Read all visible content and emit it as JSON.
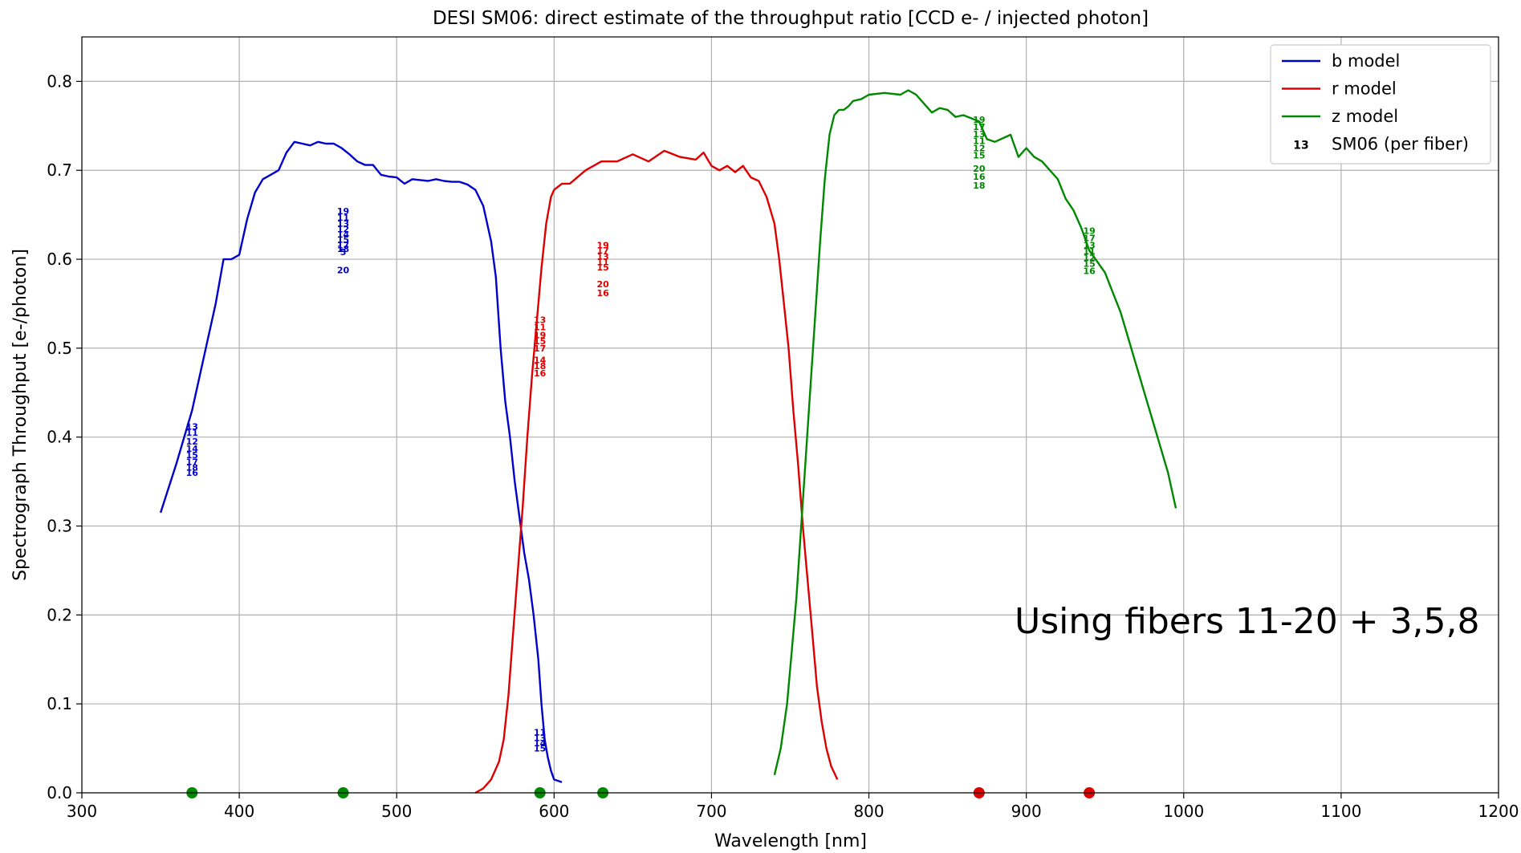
{
  "chart_data": {
    "type": "line",
    "title": "DESI SM06: direct estimate of the throughput ratio [CCD e- / injected photon]",
    "xlabel": "Wavelength [nm]",
    "ylabel": "Spectrograph Throughput [e-/photon]",
    "xlim": [
      300,
      1200
    ],
    "ylim": [
      0.0,
      0.85
    ],
    "xticks": [
      300,
      400,
      500,
      600,
      700,
      800,
      900,
      1000,
      1100,
      1200
    ],
    "xtick_labels": [
      "300",
      "400",
      "500",
      "600",
      "700",
      "800",
      "900",
      "1000",
      "1100",
      "1200"
    ],
    "yticks": [
      0.0,
      0.1,
      0.2,
      0.3,
      0.4,
      0.5,
      0.6,
      0.7,
      0.8
    ],
    "ytick_labels": [
      "0.0",
      "0.1",
      "0.2",
      "0.3",
      "0.4",
      "0.5",
      "0.6",
      "0.7",
      "0.8"
    ],
    "grid": true,
    "legend_position": "top-right",
    "annotation": "Using fibers 11-20 + 3,5,8",
    "series": [
      {
        "name": "b model",
        "color": "#0000cc",
        "x": [
          350,
          360,
          370,
          380,
          385,
          390,
          395,
          400,
          405,
          410,
          415,
          420,
          425,
          430,
          435,
          440,
          445,
          450,
          455,
          460,
          465,
          470,
          475,
          480,
          485,
          490,
          495,
          500,
          505,
          510,
          515,
          520,
          525,
          530,
          535,
          540,
          545,
          550,
          555,
          560,
          563,
          566,
          569,
          572,
          575,
          578,
          581,
          584,
          587,
          590,
          592,
          594,
          596,
          598,
          600,
          605
        ],
        "y": [
          0.315,
          0.37,
          0.43,
          0.51,
          0.55,
          0.6,
          0.6,
          0.605,
          0.645,
          0.675,
          0.69,
          0.695,
          0.7,
          0.72,
          0.732,
          0.73,
          0.728,
          0.732,
          0.73,
          0.73,
          0.725,
          0.718,
          0.71,
          0.706,
          0.706,
          0.695,
          0.693,
          0.692,
          0.685,
          0.69,
          0.689,
          0.688,
          0.69,
          0.688,
          0.687,
          0.687,
          0.684,
          0.678,
          0.66,
          0.62,
          0.58,
          0.5,
          0.44,
          0.4,
          0.35,
          0.31,
          0.27,
          0.24,
          0.2,
          0.15,
          0.1,
          0.06,
          0.04,
          0.025,
          0.015,
          0.012
        ]
      },
      {
        "name": "r model",
        "color": "#dd0000",
        "x": [
          550,
          555,
          560,
          565,
          568,
          571,
          574,
          577,
          580,
          583,
          586,
          589,
          592,
          595,
          598,
          600,
          605,
          610,
          620,
          630,
          640,
          650,
          660,
          670,
          680,
          690,
          695,
          700,
          705,
          710,
          715,
          720,
          725,
          730,
          735,
          740,
          743,
          746,
          749,
          752,
          755,
          758,
          761,
          764,
          767,
          770,
          773,
          776,
          780
        ],
        "y": [
          0.0,
          0.005,
          0.015,
          0.035,
          0.06,
          0.11,
          0.18,
          0.25,
          0.32,
          0.4,
          0.47,
          0.53,
          0.59,
          0.64,
          0.67,
          0.678,
          0.685,
          0.685,
          0.7,
          0.71,
          0.71,
          0.718,
          0.71,
          0.722,
          0.715,
          0.712,
          0.72,
          0.705,
          0.7,
          0.705,
          0.698,
          0.705,
          0.692,
          0.688,
          0.67,
          0.64,
          0.6,
          0.55,
          0.5,
          0.43,
          0.37,
          0.3,
          0.24,
          0.18,
          0.12,
          0.08,
          0.05,
          0.03,
          0.015
        ]
      },
      {
        "name": "z model",
        "color": "#008800",
        "x": [
          740,
          744,
          748,
          751,
          754,
          757,
          760,
          763,
          766,
          769,
          772,
          775,
          778,
          781,
          784,
          787,
          790,
          795,
          800,
          810,
          820,
          825,
          830,
          840,
          845,
          850,
          855,
          860,
          870,
          875,
          880,
          890,
          895,
          900,
          905,
          910,
          920,
          925,
          930,
          935,
          940,
          950,
          960,
          970,
          980,
          990,
          995
        ],
        "y": [
          0.02,
          0.05,
          0.1,
          0.16,
          0.22,
          0.3,
          0.38,
          0.46,
          0.54,
          0.62,
          0.69,
          0.74,
          0.762,
          0.768,
          0.768,
          0.772,
          0.778,
          0.78,
          0.785,
          0.787,
          0.785,
          0.79,
          0.785,
          0.765,
          0.77,
          0.768,
          0.76,
          0.762,
          0.755,
          0.735,
          0.732,
          0.74,
          0.715,
          0.725,
          0.715,
          0.71,
          0.69,
          0.668,
          0.655,
          0.635,
          0.61,
          0.585,
          0.54,
          0.48,
          0.42,
          0.36,
          0.32
        ]
      }
    ],
    "fiber_markers": {
      "name": "SM06 (per fiber)",
      "legend_symbol": "13",
      "groups": [
        {
          "x": 370,
          "color": "#0000cc",
          "labels": [
            "13",
            "11",
            "12",
            "14",
            "15",
            "17",
            "18",
            "16"
          ],
          "values": [
            0.412,
            0.405,
            0.395,
            0.387,
            0.38,
            0.372,
            0.366,
            0.36
          ]
        },
        {
          "x": 466,
          "color": "#0000cc",
          "labels": [
            "19",
            "11",
            "13",
            "12",
            "14",
            "15",
            "17",
            "18",
            "5",
            "20"
          ],
          "values": [
            0.654,
            0.647,
            0.64,
            0.634,
            0.628,
            0.622,
            0.616,
            0.612,
            0.608,
            0.588
          ]
        },
        {
          "x": 591,
          "color": "#0000cc",
          "labels": [
            "11",
            "13",
            "14",
            "15"
          ],
          "values": [
            0.068,
            0.062,
            0.056,
            0.05
          ]
        },
        {
          "x": 591,
          "color": "#dd0000",
          "labels": [
            "13",
            "11",
            "19",
            "15",
            "17",
            "14",
            "18",
            "16"
          ],
          "values": [
            0.532,
            0.524,
            0.515,
            0.508,
            0.5,
            0.487,
            0.48,
            0.472
          ]
        },
        {
          "x": 631,
          "color": "#dd0000",
          "labels": [
            "19",
            "17",
            "13",
            "11",
            "15",
            "20",
            "16"
          ],
          "values": [
            0.616,
            0.61,
            0.603,
            0.597,
            0.591,
            0.572,
            0.562
          ]
        },
        {
          "x": 870,
          "color": "#008800",
          "labels": [
            "19",
            "17",
            "13",
            "11",
            "12",
            "15",
            "20",
            "16",
            "18"
          ],
          "values": [
            0.757,
            0.749,
            0.741,
            0.733,
            0.725,
            0.717,
            0.702,
            0.693,
            0.683
          ]
        },
        {
          "x": 940,
          "color": "#008800",
          "labels": [
            "19",
            "17",
            "13",
            "11",
            "12",
            "15",
            "16"
          ],
          "values": [
            0.632,
            0.624,
            0.616,
            0.609,
            0.602,
            0.595,
            0.587
          ]
        }
      ],
      "baseline_dots": [
        {
          "x": 370,
          "color": "#008800"
        },
        {
          "x": 466,
          "color": "#008800"
        },
        {
          "x": 591,
          "color": "#008800"
        },
        {
          "x": 631,
          "color": "#008800"
        },
        {
          "x": 870,
          "color": "#dd0000"
        },
        {
          "x": 940,
          "color": "#dd0000"
        }
      ]
    }
  }
}
